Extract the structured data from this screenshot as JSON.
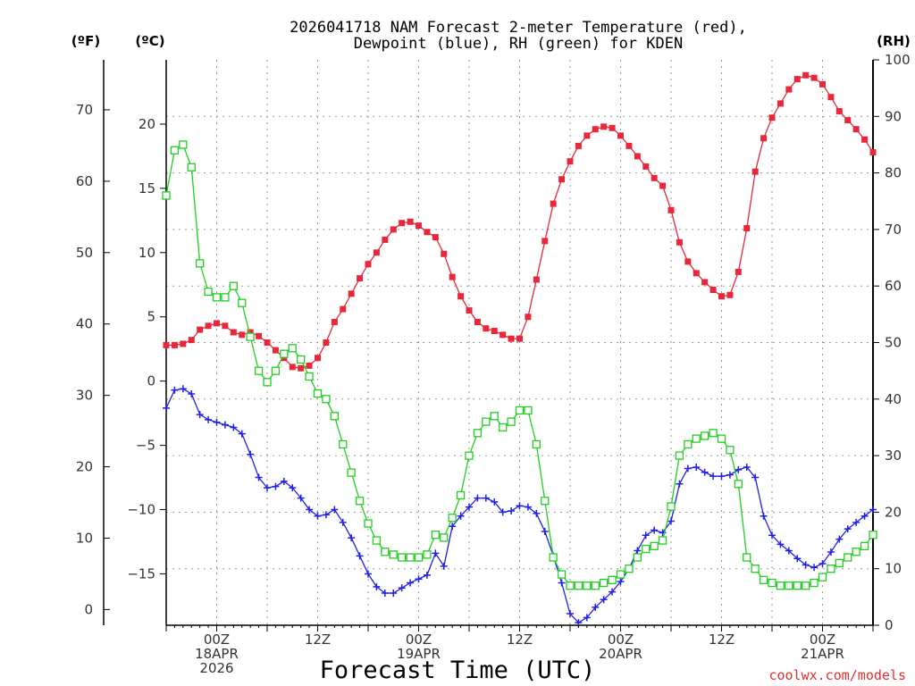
{
  "chart_data": {
    "type": "line",
    "title_line1": "2026041718 NAM Forecast 2-meter Temperature (red),",
    "title_line2": "Dewpoint (blue), RH (green) for KDEN",
    "units": {
      "fahrenheit": "(ºF)",
      "celsius": "(ºC)",
      "rh": "(RH)"
    },
    "xlabel": "Forecast Time (UTC)",
    "credit": "coolwx.com/models",
    "x_start_hour": 0,
    "x_end_hour": 84,
    "x_ticks": [
      {
        "hour": 6,
        "lines": [
          "00Z",
          "18APR",
          "2026"
        ]
      },
      {
        "hour": 18,
        "lines": [
          "12Z"
        ]
      },
      {
        "hour": 30,
        "lines": [
          "00Z",
          "19APR"
        ]
      },
      {
        "hour": 42,
        "lines": [
          "12Z"
        ]
      },
      {
        "hour": 54,
        "lines": [
          "00Z",
          "20APR"
        ]
      },
      {
        "hour": 66,
        "lines": [
          "12Z"
        ]
      },
      {
        "hour": 78,
        "lines": [
          "00Z",
          "21APR"
        ]
      }
    ],
    "celsius_axis": {
      "ylim": [
        -19,
        25
      ],
      "ticks": [
        20,
        15,
        10,
        5,
        0,
        -5,
        -10,
        -15
      ]
    },
    "fahrenheit_axis": {
      "ticks": [
        70,
        60,
        50,
        40,
        30,
        20,
        10,
        0
      ]
    },
    "rh_axis": {
      "ylim": [
        0,
        100
      ],
      "ticks": [
        100,
        90,
        80,
        70,
        60,
        50,
        40,
        30,
        20,
        10,
        0
      ]
    },
    "series": [
      {
        "name": "Temperature",
        "unit": "C",
        "color": "#e8283a",
        "marker": "filled-square",
        "values": [
          2.8,
          2.8,
          2.9,
          3.2,
          4.0,
          4.3,
          4.5,
          4.3,
          3.8,
          3.6,
          3.8,
          3.5,
          3.0,
          2.4,
          1.8,
          1.1,
          1.0,
          1.2,
          1.8,
          3.0,
          4.6,
          5.6,
          6.8,
          8.0,
          9.1,
          10.0,
          11.0,
          11.8,
          12.3,
          12.4,
          12.1,
          11.6,
          11.2,
          9.9,
          8.1,
          6.6,
          5.5,
          4.6,
          4.1,
          3.9,
          3.6,
          3.3,
          3.3,
          5.0,
          7.9,
          10.9,
          13.8,
          15.7,
          17.1,
          18.3,
          19.1,
          19.6,
          19.8,
          19.7,
          19.1,
          18.3,
          17.5,
          16.7,
          15.8,
          15.2,
          13.3,
          10.8,
          9.3,
          8.4,
          7.7,
          7.1,
          6.6,
          6.7,
          8.5,
          11.9,
          16.3,
          18.9,
          20.5,
          21.6,
          22.7,
          23.5,
          23.8,
          23.6,
          23.1,
          22.1,
          21.0,
          20.3,
          19.6,
          18.8,
          17.8
        ]
      },
      {
        "name": "Dewpoint",
        "unit": "C",
        "color": "#2020e8",
        "marker": "plus",
        "values": [
          -2.1,
          -0.7,
          -0.6,
          -1.0,
          -2.6,
          -3.0,
          -3.2,
          -3.4,
          -3.6,
          -4.1,
          -5.7,
          -7.5,
          -8.3,
          -8.2,
          -7.8,
          -8.3,
          -9.1,
          -10.0,
          -10.5,
          -10.4,
          -10.0,
          -11.0,
          -12.2,
          -13.6,
          -15.0,
          -16.0,
          -16.5,
          -16.5,
          -16.1,
          -15.7,
          -15.4,
          -15.1,
          -13.4,
          -14.4,
          -11.3,
          -10.5,
          -9.8,
          -9.1,
          -9.1,
          -9.4,
          -10.2,
          -10.1,
          -9.7,
          -9.8,
          -10.3,
          -11.7,
          -13.6,
          -15.7,
          -18.1,
          -18.8,
          -18.4,
          -17.6,
          -17.0,
          -16.4,
          -15.6,
          -14.6,
          -13.2,
          -12.0,
          -11.6,
          -11.8,
          -10.9,
          -8.0,
          -6.8,
          -6.7,
          -7.1,
          -7.4,
          -7.4,
          -7.3,
          -6.9,
          -6.7,
          -7.5,
          -10.5,
          -12.0,
          -12.7,
          -13.2,
          -13.8,
          -14.3,
          -14.5,
          -14.2,
          -13.3,
          -12.3,
          -11.5,
          -11.0,
          -10.5,
          -10.0
        ]
      },
      {
        "name": "RH",
        "unit": "%",
        "color": "#20d020",
        "marker": "open-square",
        "values": [
          76,
          84,
          85,
          81,
          64,
          59,
          58,
          58,
          60,
          57,
          51,
          45,
          43,
          45,
          48,
          49,
          47,
          44,
          41,
          40,
          37,
          32,
          27,
          22,
          18,
          15,
          13,
          12.5,
          12,
          12,
          12,
          12.5,
          16,
          15.5,
          19,
          23,
          30,
          34,
          36,
          37,
          35,
          36,
          38,
          38,
          32,
          22,
          12,
          9,
          7,
          7,
          7,
          7,
          7.5,
          8,
          9,
          10,
          12,
          13.5,
          14,
          15,
          21,
          30,
          32,
          33,
          33.5,
          34,
          33,
          31,
          25,
          12,
          10,
          8,
          7.5,
          7,
          7,
          7,
          7,
          7.5,
          8.5,
          10,
          11,
          12,
          13,
          14,
          16
        ]
      }
    ]
  }
}
